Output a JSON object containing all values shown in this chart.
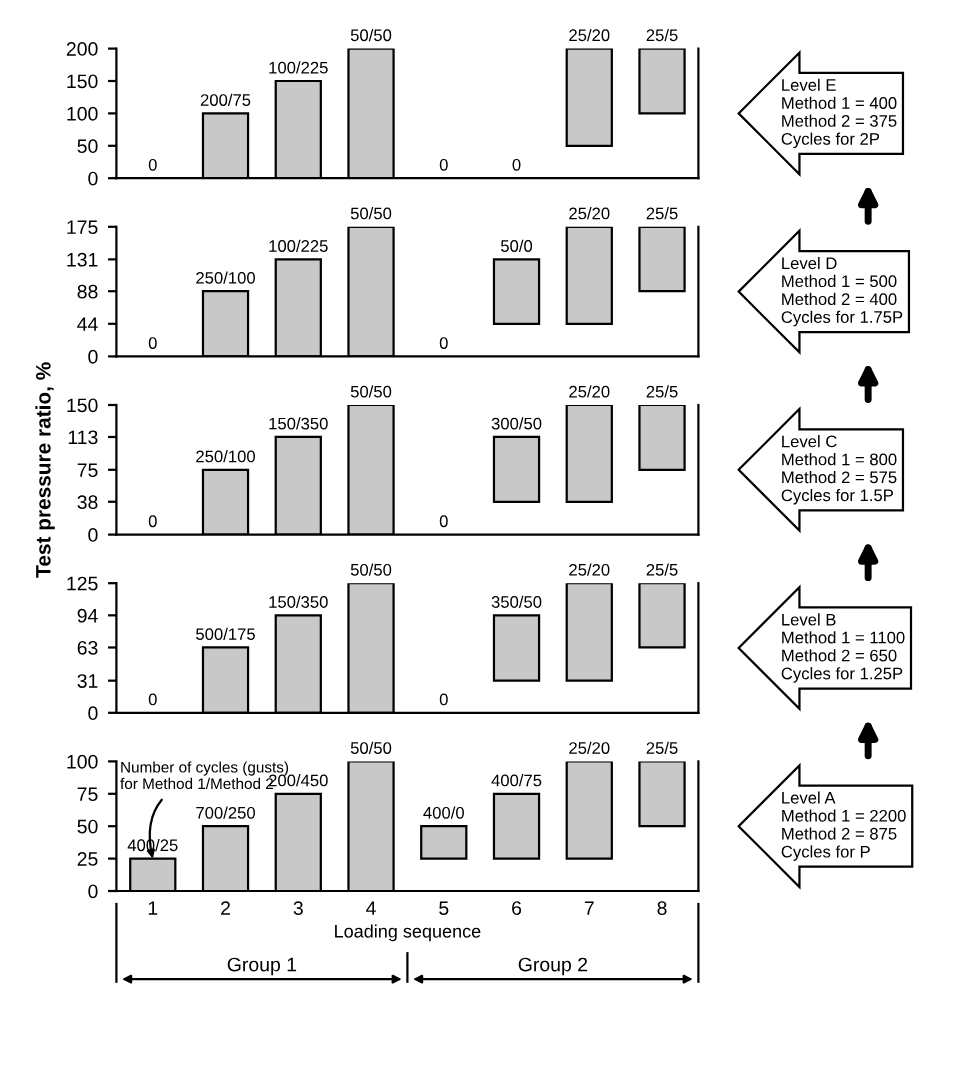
{
  "chart_data": [
    {
      "type": "bar",
      "categories": [
        "1",
        "2",
        "3",
        "4",
        "5",
        "6",
        "7",
        "8"
      ],
      "values": [
        0,
        100,
        150,
        200,
        0,
        0,
        150,
        100
      ],
      "base": [
        null,
        null,
        null,
        null,
        null,
        null,
        50,
        100
      ],
      "value_labels": [
        "0",
        "200/75",
        "100/225",
        "50/50",
        "0",
        "0",
        "25/20",
        "25/5"
      ],
      "color": "#c8c8c8",
      "ylim": [
        0,
        200
      ],
      "yticks": [
        0,
        50,
        100,
        150,
        200
      ],
      "tick_labels": "y",
      "grid": false,
      "legend": false,
      "annotations": [
        "Level E\nMethod 1 = 400\nMethod 2 = 375\nCycles for 2P"
      ]
    },
    {
      "type": "bar",
      "categories": [
        "1",
        "2",
        "3",
        "4",
        "5",
        "6",
        "7",
        "8"
      ],
      "values": [
        0,
        88,
        131,
        175,
        0,
        87,
        131,
        87
      ],
      "base": [
        null,
        null,
        null,
        null,
        null,
        44,
        44,
        88
      ],
      "value_labels": [
        "0",
        "250/100",
        "100/225",
        "50/50",
        "0",
        "50/0",
        "25/20",
        "25/5"
      ],
      "color": "#c8c8c8",
      "ylim": [
        0,
        175
      ],
      "yticks": [
        0,
        44,
        88,
        131,
        175
      ],
      "tick_labels": "y",
      "grid": false,
      "legend": false,
      "annotations": [
        "Level D\nMethod 1 = 500\nMethod 2 = 400\nCycles for 1.75P"
      ]
    },
    {
      "type": "bar",
      "categories": [
        "1",
        "2",
        "3",
        "4",
        "5",
        "6",
        "7",
        "8"
      ],
      "values": [
        0,
        75,
        113,
        150,
        0,
        75,
        112,
        75
      ],
      "base": [
        null,
        null,
        null,
        null,
        null,
        38,
        38,
        75
      ],
      "value_labels": [
        "0",
        "250/100",
        "150/350",
        "50/50",
        "0",
        "300/50",
        "25/20",
        "25/5"
      ],
      "color": "#c8c8c8",
      "ylim": [
        0,
        150
      ],
      "yticks": [
        0,
        38,
        75,
        113,
        150
      ],
      "tick_labels": "y",
      "ylabel": "Test pressure ratio, %",
      "grid": false,
      "legend": false,
      "annotations": [
        "Level C\nMethod 1 = 800\nMethod 2 = 575\nCycles for 1.5P"
      ]
    },
    {
      "type": "bar",
      "categories": [
        "1",
        "2",
        "3",
        "4",
        "5",
        "6",
        "7",
        "8"
      ],
      "values": [
        0,
        63,
        94,
        125,
        0,
        63,
        94,
        62
      ],
      "base": [
        null,
        null,
        null,
        null,
        null,
        31,
        31,
        63
      ],
      "value_labels": [
        "0",
        "500/175",
        "150/350",
        "50/50",
        "0",
        "350/50",
        "25/20",
        "25/5"
      ],
      "color": "#c8c8c8",
      "ylim": [
        0,
        125
      ],
      "yticks": [
        0,
        31,
        63,
        94,
        125
      ],
      "tick_labels": "y",
      "grid": false,
      "legend": false,
      "annotations": [
        "Level B\nMethod 1 = 1100\nMethod 2 = 650\nCycles for 1.25P"
      ]
    },
    {
      "type": "bar",
      "categories": [
        "1",
        "2",
        "3",
        "4",
        "5",
        "6",
        "7",
        "8"
      ],
      "values": [
        25,
        50,
        75,
        100,
        25,
        50,
        75,
        50
      ],
      "base": [
        null,
        null,
        null,
        null,
        25,
        25,
        25,
        50
      ],
      "value_labels": [
        "400/25",
        "700/250",
        "200/450",
        "50/50",
        "400/0",
        "400/75",
        "25/20",
        "25/5"
      ],
      "color": "#c8c8c8",
      "ylim": [
        0,
        100
      ],
      "yticks": [
        0,
        25,
        50,
        75,
        100
      ],
      "xlabel": "Loading sequence",
      "grid": false,
      "legend": false,
      "annotations": [
        "Level A\nMethod 1 = 2200\nMethod 2 = 875\nCycles for P",
        "Group 1",
        "Group 2",
        {
          "text": "Number of cycles (gusts)\nfor Method 1/Method 2",
          "x": "1",
          "y": 25
        }
      ]
    }
  ]
}
